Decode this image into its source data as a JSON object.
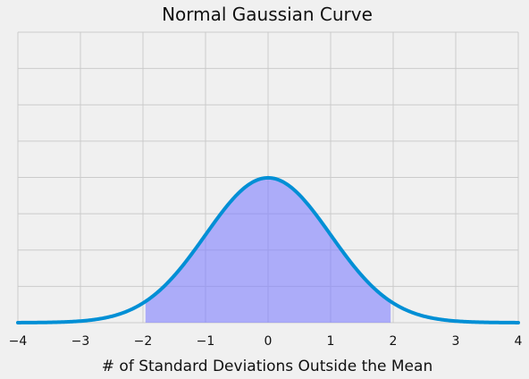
{
  "chart_data": {
    "type": "line",
    "title": "Normal Gaussian Curve",
    "xlabel": "# of Standard Deviations Outside the Mean",
    "ylabel": "",
    "xlim": [
      -4,
      4
    ],
    "ylim": [
      0,
      0.8
    ],
    "xticks": [
      -4,
      -3,
      -2,
      -1,
      0,
      1,
      2,
      3,
      4
    ],
    "xtick_labels": [
      "−4",
      "−3",
      "−2",
      "−1",
      "0",
      "1",
      "2",
      "3",
      "4"
    ],
    "yticks": [
      0,
      0.1,
      0.2,
      0.3,
      0.4,
      0.5,
      0.6,
      0.7,
      0.8
    ],
    "yticks_labeled": false,
    "grid": true,
    "series": [
      {
        "function": "standard normal pdf",
        "mean": 0,
        "std": 1,
        "x_range": [
          -4,
          4
        ],
        "peak": 0.399,
        "color": "#008fd5"
      }
    ],
    "shaded_region": {
      "x_range": [
        -1.96,
        1.96
      ],
      "color": "#7f7fff",
      "opacity": 0.6
    }
  }
}
